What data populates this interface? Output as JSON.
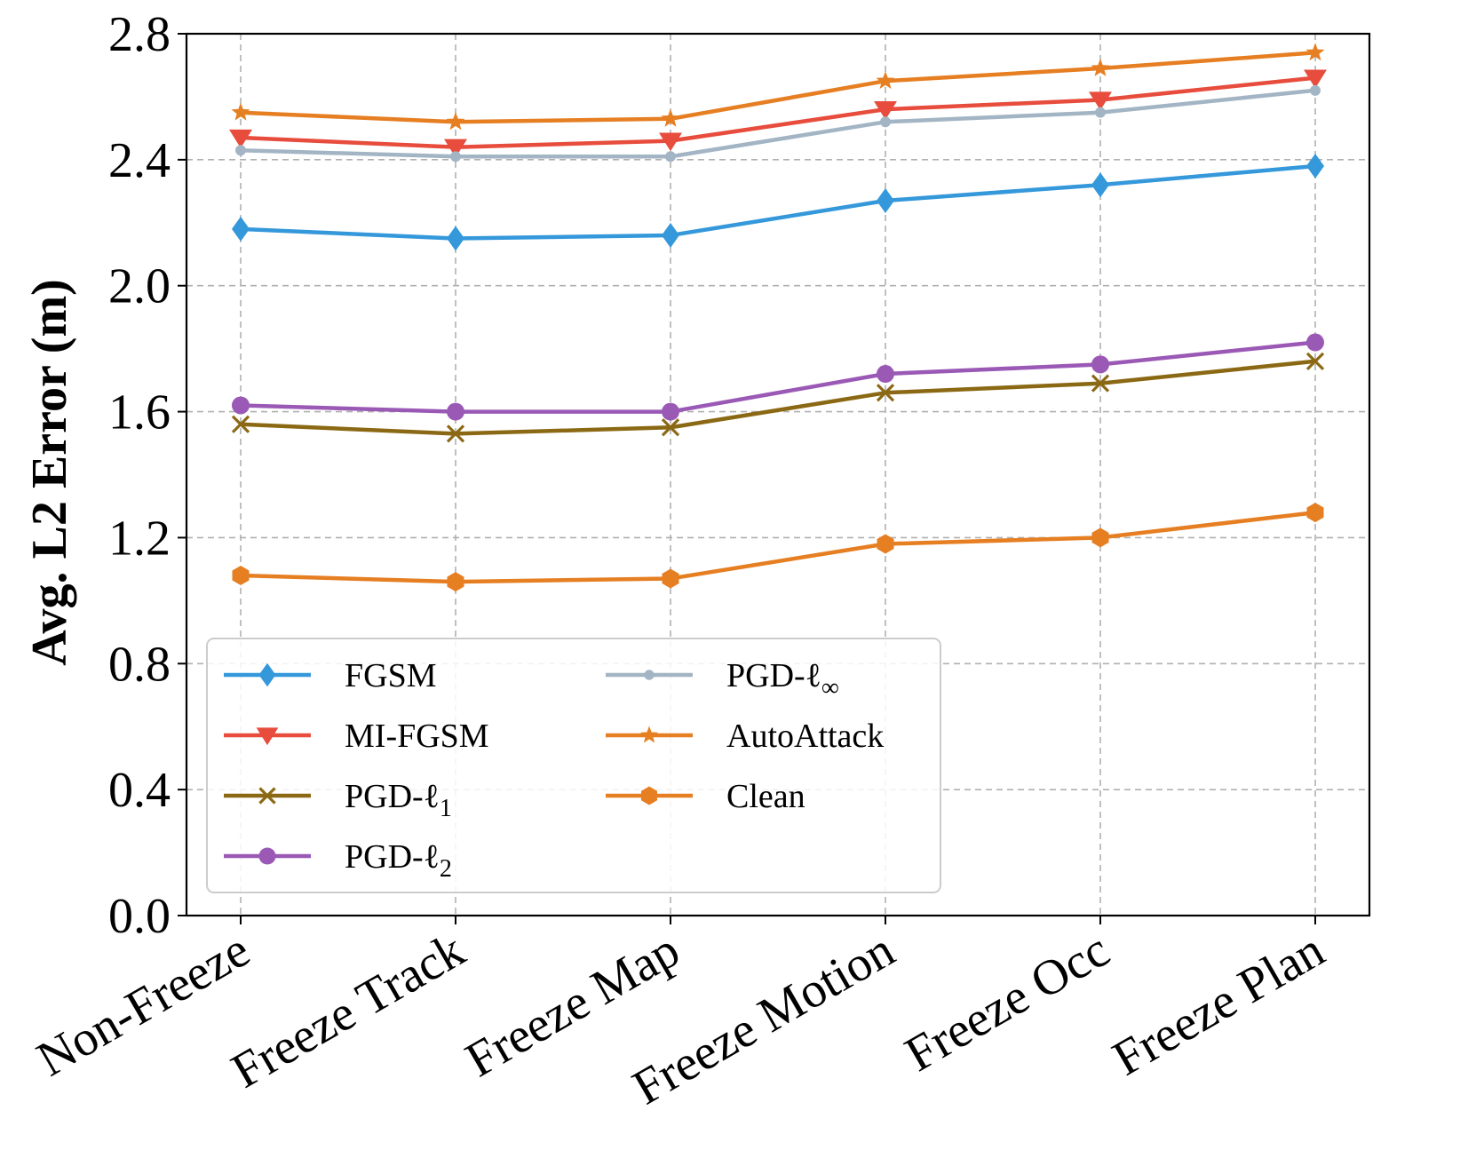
{
  "chart_data": {
    "type": "line",
    "title": "",
    "xlabel": "",
    "ylabel": "Avg. L2 Error (m)",
    "ylim": [
      0.0,
      2.8
    ],
    "yticks": [
      "0.0",
      "0.4",
      "0.8",
      "1.2",
      "1.6",
      "2.0",
      "2.4",
      "2.8"
    ],
    "ytick_values": [
      0.0,
      0.4,
      0.8,
      1.2,
      1.6,
      2.0,
      2.4,
      2.8
    ],
    "grid": true,
    "legend_position": "lower-left",
    "categories": [
      "Non-Freeze",
      "Freeze Track",
      "Freeze Map",
      "Freeze Motion",
      "Freeze Occ",
      "Freeze Plan"
    ],
    "series": [
      {
        "name": "FGSM",
        "legend_main": "FGSM",
        "legend_sub": "",
        "color": "#3498db",
        "marker": "diamond",
        "values": [
          2.18,
          2.15,
          2.16,
          2.27,
          2.32,
          2.38
        ]
      },
      {
        "name": "MI-FGSM",
        "legend_main": "MI-FGSM",
        "legend_sub": "",
        "color": "#e74c3c",
        "marker": "triangle-down",
        "values": [
          2.47,
          2.44,
          2.46,
          2.56,
          2.59,
          2.66
        ]
      },
      {
        "name": "PGD-ℓ1",
        "legend_main": "PGD-ℓ",
        "legend_sub": "1",
        "color": "#8b6914",
        "marker": "x",
        "values": [
          1.56,
          1.53,
          1.55,
          1.66,
          1.69,
          1.76
        ]
      },
      {
        "name": "PGD-ℓ2",
        "legend_main": "PGD-ℓ",
        "legend_sub": "2",
        "color": "#9b59b6",
        "marker": "circle",
        "values": [
          1.62,
          1.6,
          1.6,
          1.72,
          1.75,
          1.82
        ]
      },
      {
        "name": "PGD-ℓ∞",
        "legend_main": "PGD-ℓ",
        "legend_sub": "∞",
        "color": "#a3b5c4",
        "marker": "point",
        "values": [
          2.43,
          2.41,
          2.41,
          2.52,
          2.55,
          2.62
        ]
      },
      {
        "name": "AutoAttack",
        "legend_main": "AutoAttack",
        "legend_sub": "",
        "color": "#e67e22",
        "marker": "star",
        "values": [
          2.55,
          2.52,
          2.53,
          2.65,
          2.69,
          2.74
        ]
      },
      {
        "name": "Clean",
        "legend_main": "Clean",
        "legend_sub": "",
        "color": "#e67e22",
        "marker": "hexagon",
        "values": [
          1.08,
          1.06,
          1.07,
          1.18,
          1.2,
          1.28
        ]
      }
    ]
  }
}
